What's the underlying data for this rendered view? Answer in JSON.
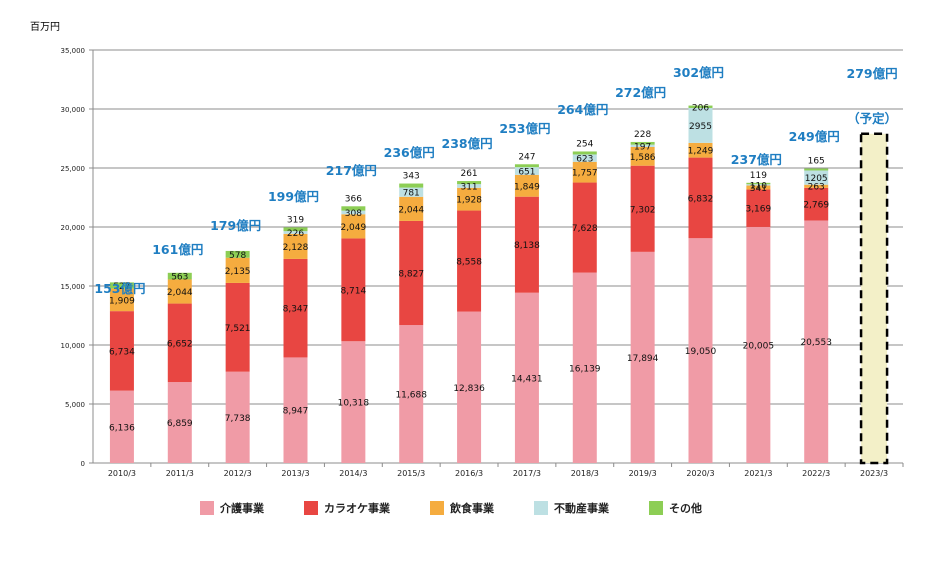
{
  "chart_data": {
    "type": "bar",
    "stacked": true,
    "unit_label": "百万円",
    "xlabel": "",
    "ylabel": "百万円",
    "ylim": [
      0,
      35000
    ],
    "yticks": [
      0,
      5000,
      10000,
      15000,
      20000,
      25000,
      30000,
      35000
    ],
    "ytick_labels": [
      "0",
      "5,000",
      "10,000",
      "15,000",
      "20,000",
      "25,000",
      "30,000",
      "35,000"
    ],
    "grid": true,
    "legend_position": "bottom",
    "categories": [
      "2010/3",
      "2011/3",
      "2012/3",
      "2013/3",
      "2014/3",
      "2015/3",
      "2016/3",
      "2017/3",
      "2018/3",
      "2019/3",
      "2020/3",
      "2021/3",
      "2022/3",
      "2023/3"
    ],
    "series": [
      {
        "name": "介護事業",
        "color": "#f09ba6",
        "values": [
          6136,
          6859,
          7738,
          8947,
          10318,
          11688,
          12836,
          14431,
          16139,
          17894,
          19050,
          20005,
          20553,
          null
        ],
        "labels": [
          "6,136",
          "6,859",
          "7,738",
          "8,947",
          "10,318",
          "11,688",
          "12,836",
          "14,431",
          "16,139",
          "17,894",
          "19,050",
          "20,005",
          "20,553",
          ""
        ]
      },
      {
        "name": "カラオケ事業",
        "color": "#e84642",
        "values": [
          6734,
          6652,
          7521,
          8347,
          8714,
          8827,
          8558,
          8138,
          7628,
          7302,
          6832,
          3169,
          2769,
          null
        ],
        "labels": [
          "6,734",
          "6,652",
          "7,521",
          "8,347",
          "8,714",
          "8,827",
          "8,558",
          "8,138",
          "7,628",
          "7,302",
          "6,832",
          "3,169",
          "2,769",
          ""
        ]
      },
      {
        "name": "飲食事業",
        "color": "#f5ac3f",
        "values": [
          1909,
          2044,
          2135,
          2128,
          2049,
          2044,
          1928,
          1849,
          1757,
          1586,
          1249,
          341,
          263,
          null
        ],
        "labels": [
          "1,909",
          "2,044",
          "2,135",
          "2,128",
          "2,049",
          "2,044",
          "1,928",
          "1,849",
          "1,757",
          "1,586",
          "1,249",
          "341",
          "263",
          ""
        ]
      },
      {
        "name": "不動産事業",
        "color": "#bde0e3",
        "values": [
          0,
          0,
          0,
          226,
          308,
          781,
          311,
          651,
          623,
          197,
          2955,
          110,
          1205,
          null
        ],
        "labels": [
          "",
          "",
          "",
          "226",
          "308",
          "781",
          "311",
          "651",
          "623",
          "197",
          "2955",
          "110",
          "1205",
          ""
        ]
      },
      {
        "name": "その他",
        "color": "#8dce55",
        "values": [
          527,
          563,
          578,
          319,
          366,
          343,
          261,
          247,
          254,
          228,
          206,
          119,
          165,
          null
        ],
        "labels": [
          "527",
          "563",
          "578",
          "319",
          "366",
          "343",
          "261",
          "247",
          "254",
          "228",
          "206",
          "119",
          "165",
          ""
        ]
      }
    ],
    "totals_annotations": [
      "153億円",
      "161億円",
      "179億円",
      "199億円",
      "217億円",
      "236億円",
      "238億円",
      "253億円",
      "264億円",
      "272億円",
      "302億円",
      "237億円",
      "249億円",
      "279億円"
    ],
    "forecast": {
      "category": "2023/3",
      "value": 27900,
      "label": "279億円",
      "sublabel": "（予定）",
      "fill": "#f3f0c8",
      "border": "#000000"
    },
    "annotation_color": "#1f7ec2"
  }
}
